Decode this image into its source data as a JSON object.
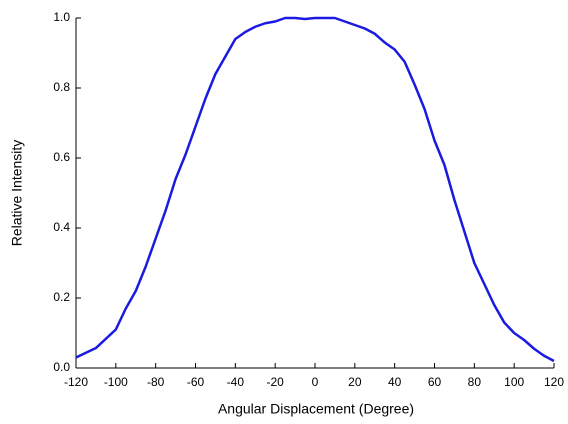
{
  "chart_data": {
    "type": "line",
    "xlabel": "Angular Displacement (Degree)",
    "ylabel": "Relative Intensity",
    "x": [
      -120,
      -110,
      -100,
      -95,
      -90,
      -85,
      -80,
      -75,
      -70,
      -65,
      -60,
      -55,
      -50,
      -45,
      -40,
      -35,
      -30,
      -25,
      -20,
      -15,
      -10,
      -5,
      0,
      5,
      10,
      15,
      20,
      25,
      30,
      35,
      40,
      45,
      50,
      55,
      60,
      65,
      70,
      75,
      80,
      85,
      90,
      95,
      100,
      105,
      110,
      115,
      120
    ],
    "series": [
      {
        "name": "Relative Intensity",
        "color": "#1a1ae0",
        "values": [
          0.03,
          0.057,
          0.11,
          0.17,
          0.22,
          0.29,
          0.37,
          0.45,
          0.54,
          0.61,
          0.69,
          0.77,
          0.84,
          0.89,
          0.94,
          0.96,
          0.975,
          0.985,
          0.99,
          1.0,
          1.0,
          0.997,
          1.0,
          1.0,
          1.0,
          0.99,
          0.98,
          0.97,
          0.955,
          0.93,
          0.91,
          0.875,
          0.81,
          0.74,
          0.65,
          0.58,
          0.48,
          0.39,
          0.3,
          0.24,
          0.18,
          0.13,
          0.1,
          0.08,
          0.055,
          0.035,
          0.02
        ]
      }
    ],
    "xlim": [
      -120,
      120
    ],
    "xticks": [
      -120,
      -100,
      -80,
      -60,
      -40,
      -20,
      0,
      20,
      40,
      60,
      80,
      100,
      120
    ],
    "ylim": [
      0,
      1
    ],
    "yticks": [
      {
        "value": 0,
        "label": "0.0"
      },
      0.2,
      0.4,
      0.6,
      0.8,
      {
        "value": 1,
        "label": "1.0"
      }
    ],
    "grid": false
  }
}
